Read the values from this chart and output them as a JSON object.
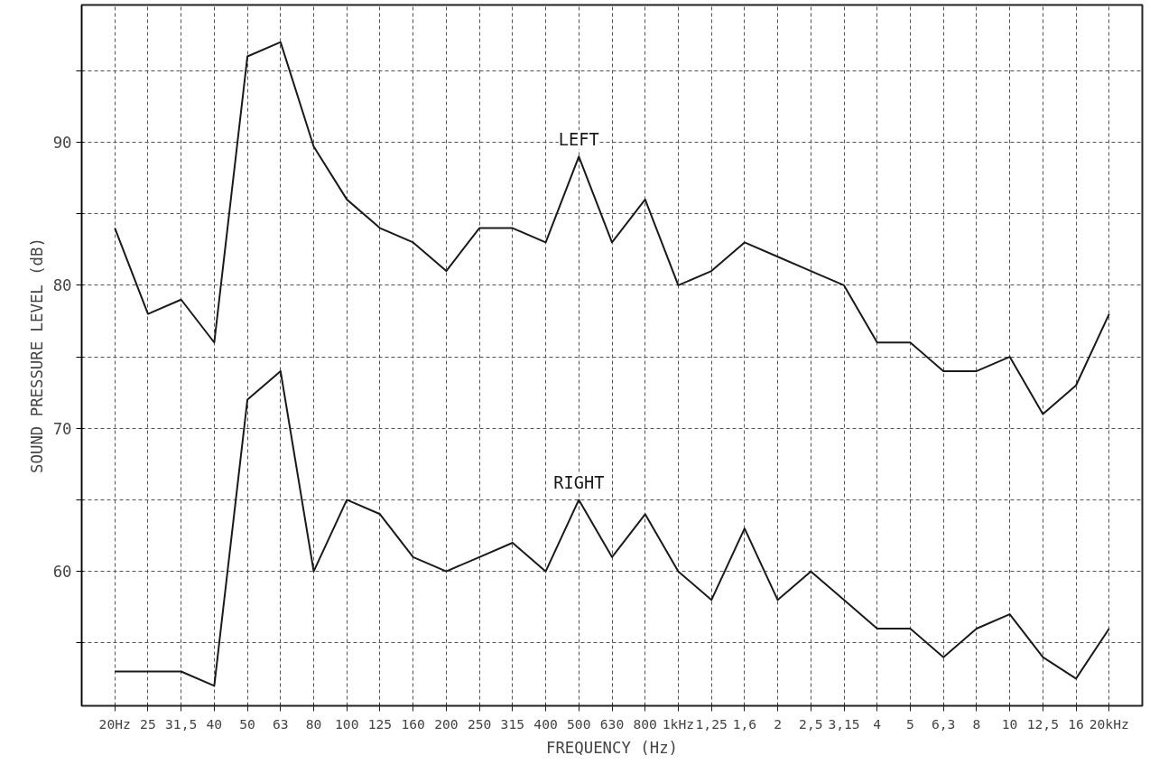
{
  "chart_data": {
    "type": "line",
    "xlabel": "FREQUENCY (Hz)",
    "ylabel": "SOUND PRESSURE LEVEL (dB)",
    "categories": [
      "20Hz",
      "25",
      "31,5",
      "40",
      "50",
      "63",
      "80",
      "100",
      "125",
      "160",
      "200",
      "250",
      "315",
      "400",
      "500",
      "630",
      "800",
      "1kHz",
      "1,25",
      "1,6",
      "2",
      "2,5",
      "3,15",
      "4",
      "5",
      "6,3",
      "8",
      "10",
      "12,5",
      "16",
      "20kHz"
    ],
    "series": [
      {
        "name": "LEFT",
        "color": "#1a1a1a",
        "values": [
          84,
          78,
          79,
          76,
          96,
          97,
          89.7,
          86,
          84,
          83,
          81,
          84,
          84,
          83,
          89,
          83,
          86,
          80,
          81,
          83,
          82,
          81,
          80,
          76,
          76,
          74,
          74,
          75,
          71,
          73,
          78
        ]
      },
      {
        "name": "RIGHT",
        "color": "#1a1a1a",
        "values": [
          53,
          53,
          53,
          52,
          72,
          74,
          60,
          65,
          64,
          61,
          60,
          61,
          62,
          60,
          65,
          61,
          64,
          60,
          58,
          63,
          58,
          60,
          58,
          56,
          56,
          54,
          56,
          57,
          54,
          52.5,
          56
        ]
      }
    ],
    "ylim": [
      50.6,
      99.6
    ],
    "yticks": [
      {
        "value": 55,
        "label": null
      },
      60,
      {
        "value": 65,
        "label": null
      },
      70,
      {
        "value": 75,
        "label": null
      },
      80,
      {
        "value": 85,
        "label": null
      },
      90,
      {
        "value": 95,
        "label": null
      }
    ],
    "grid": true
  }
}
